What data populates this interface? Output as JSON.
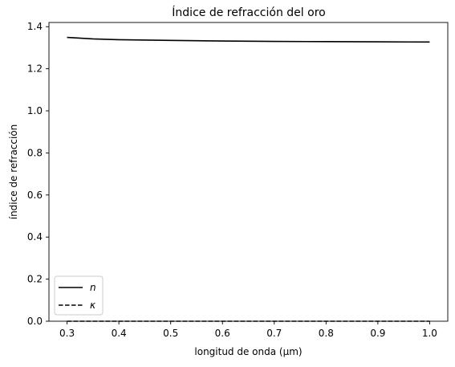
{
  "chart_data": {
    "type": "line",
    "title": "Índice de refracción del oro",
    "xlabel": "longitud de onda (μm)",
    "ylabel": "índice de refracción",
    "xlim": [
      0.265,
      1.035
    ],
    "ylim": [
      0.0,
      1.42
    ],
    "xticks": [
      0.3,
      0.4,
      0.5,
      0.6,
      0.7,
      0.8,
      0.9,
      1.0
    ],
    "yticks": [
      0.0,
      0.2,
      0.4,
      0.6,
      0.8,
      1.0,
      1.2,
      1.4
    ],
    "grid": false,
    "legend": "lower-left",
    "series": [
      {
        "name": "n",
        "style": "solid",
        "color": "#000000",
        "x": [
          0.3,
          0.35,
          0.4,
          0.5,
          0.6,
          0.7,
          0.8,
          0.9,
          1.0
        ],
        "y": [
          1.349,
          1.342,
          1.338,
          1.335,
          1.332,
          1.33,
          1.329,
          1.328,
          1.327
        ]
      },
      {
        "name": "κ",
        "style": "dashed",
        "color": "#000000",
        "x": [
          0.3,
          0.4,
          0.5,
          0.6,
          0.7,
          0.8,
          0.9,
          1.0
        ],
        "y": [
          0.0,
          0.0,
          0.0,
          0.0,
          0.0,
          0.0,
          0.0,
          0.0
        ]
      }
    ]
  }
}
